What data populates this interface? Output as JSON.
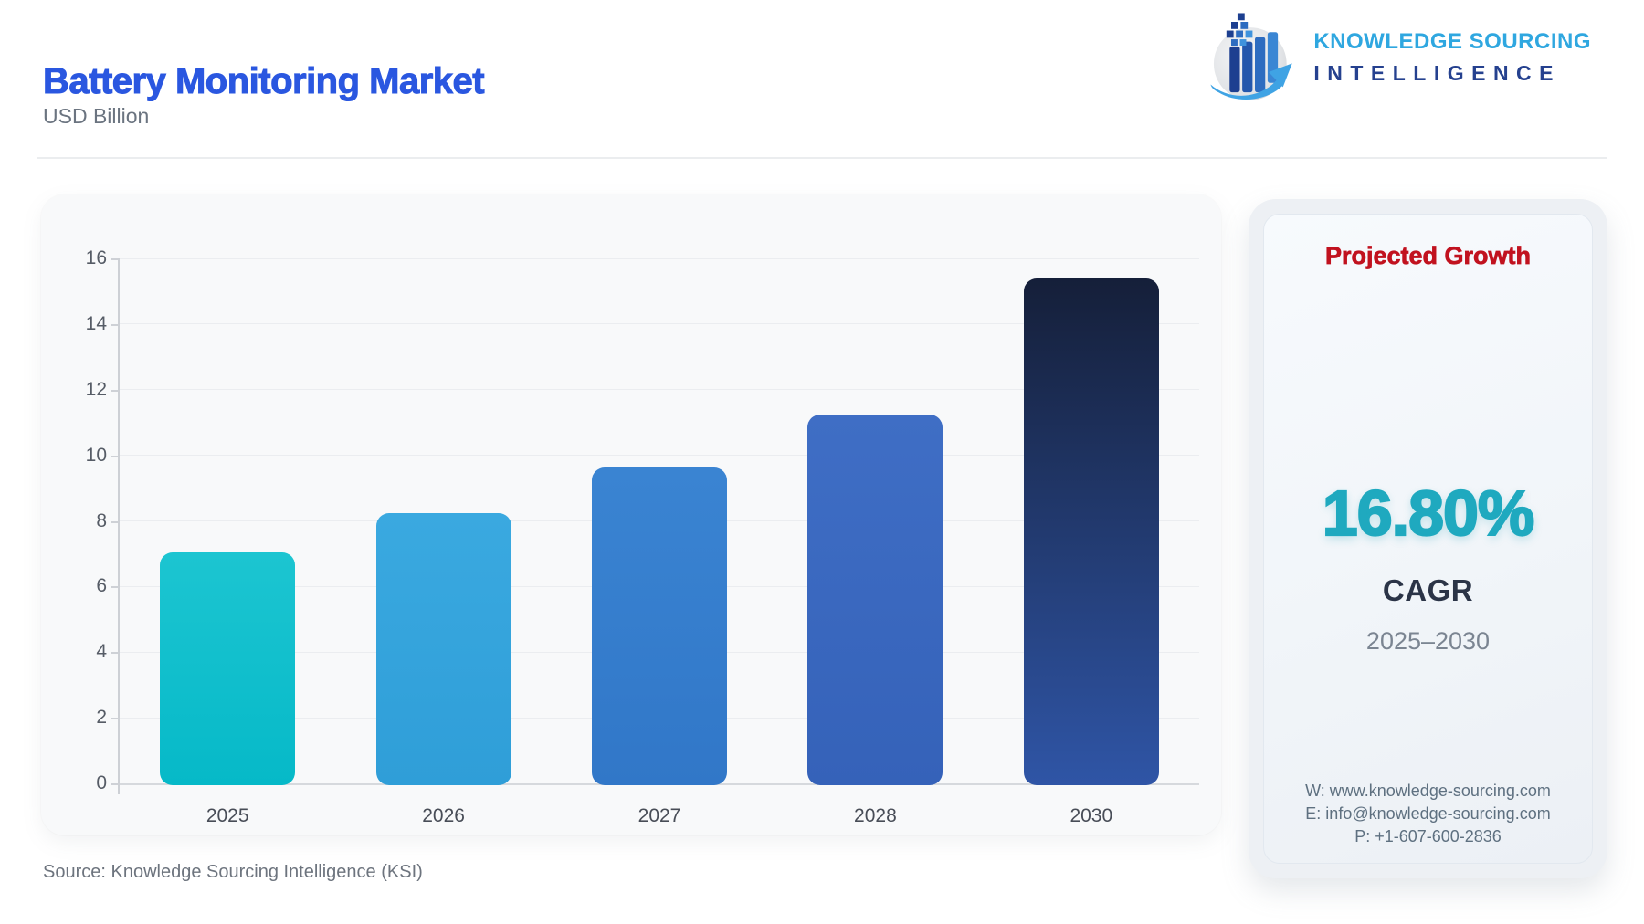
{
  "header": {
    "title": "Battery Monitoring Market",
    "subtitle": "USD Billion",
    "brand": {
      "line1": "KNOWLEDGE SOURCING",
      "line2": "INTELLIGENCE"
    }
  },
  "colors": {
    "title": "#2a57e0",
    "panel_heading": "#c1121f",
    "accent_teal": "#1fa9bf",
    "brand_light_blue": "#2fa7e0",
    "brand_navy": "#25418f"
  },
  "chart_data": {
    "type": "bar",
    "title": "Battery Monitoring Market",
    "ylabel": "USD Billion",
    "xlabel": "",
    "categories": [
      "2025",
      "2026",
      "2027",
      "2028",
      "2030"
    ],
    "values": [
      7.1,
      8.29,
      9.69,
      11.31,
      15.44
    ],
    "ylim": [
      0,
      16
    ],
    "ytick_step": 2,
    "grid": true,
    "legend": "none",
    "bar_colors": [
      {
        "top": "#1cc5d1",
        "bottom": "#06b9c8"
      },
      {
        "top": "#3aa9e0",
        "bottom": "#2f9ed8"
      },
      {
        "top": "#3a84d2",
        "bottom": "#3177c8"
      },
      {
        "top": "#3f6ec5",
        "bottom": "#3562b9"
      },
      {
        "top": "#151f39",
        "bottom": "#2f55a6"
      }
    ]
  },
  "panel": {
    "heading": "Projected Growth",
    "cagr_value": "16.80%",
    "cagr_label": "CAGR",
    "period": "2025–2030",
    "contact": {
      "website": "W: www.knowledge-sourcing.com",
      "email": "E: info@knowledge-sourcing.com",
      "phone": "P: +1-607-600-2836"
    }
  },
  "footer": {
    "source": "Source: Knowledge Sourcing Intelligence (KSI)"
  }
}
